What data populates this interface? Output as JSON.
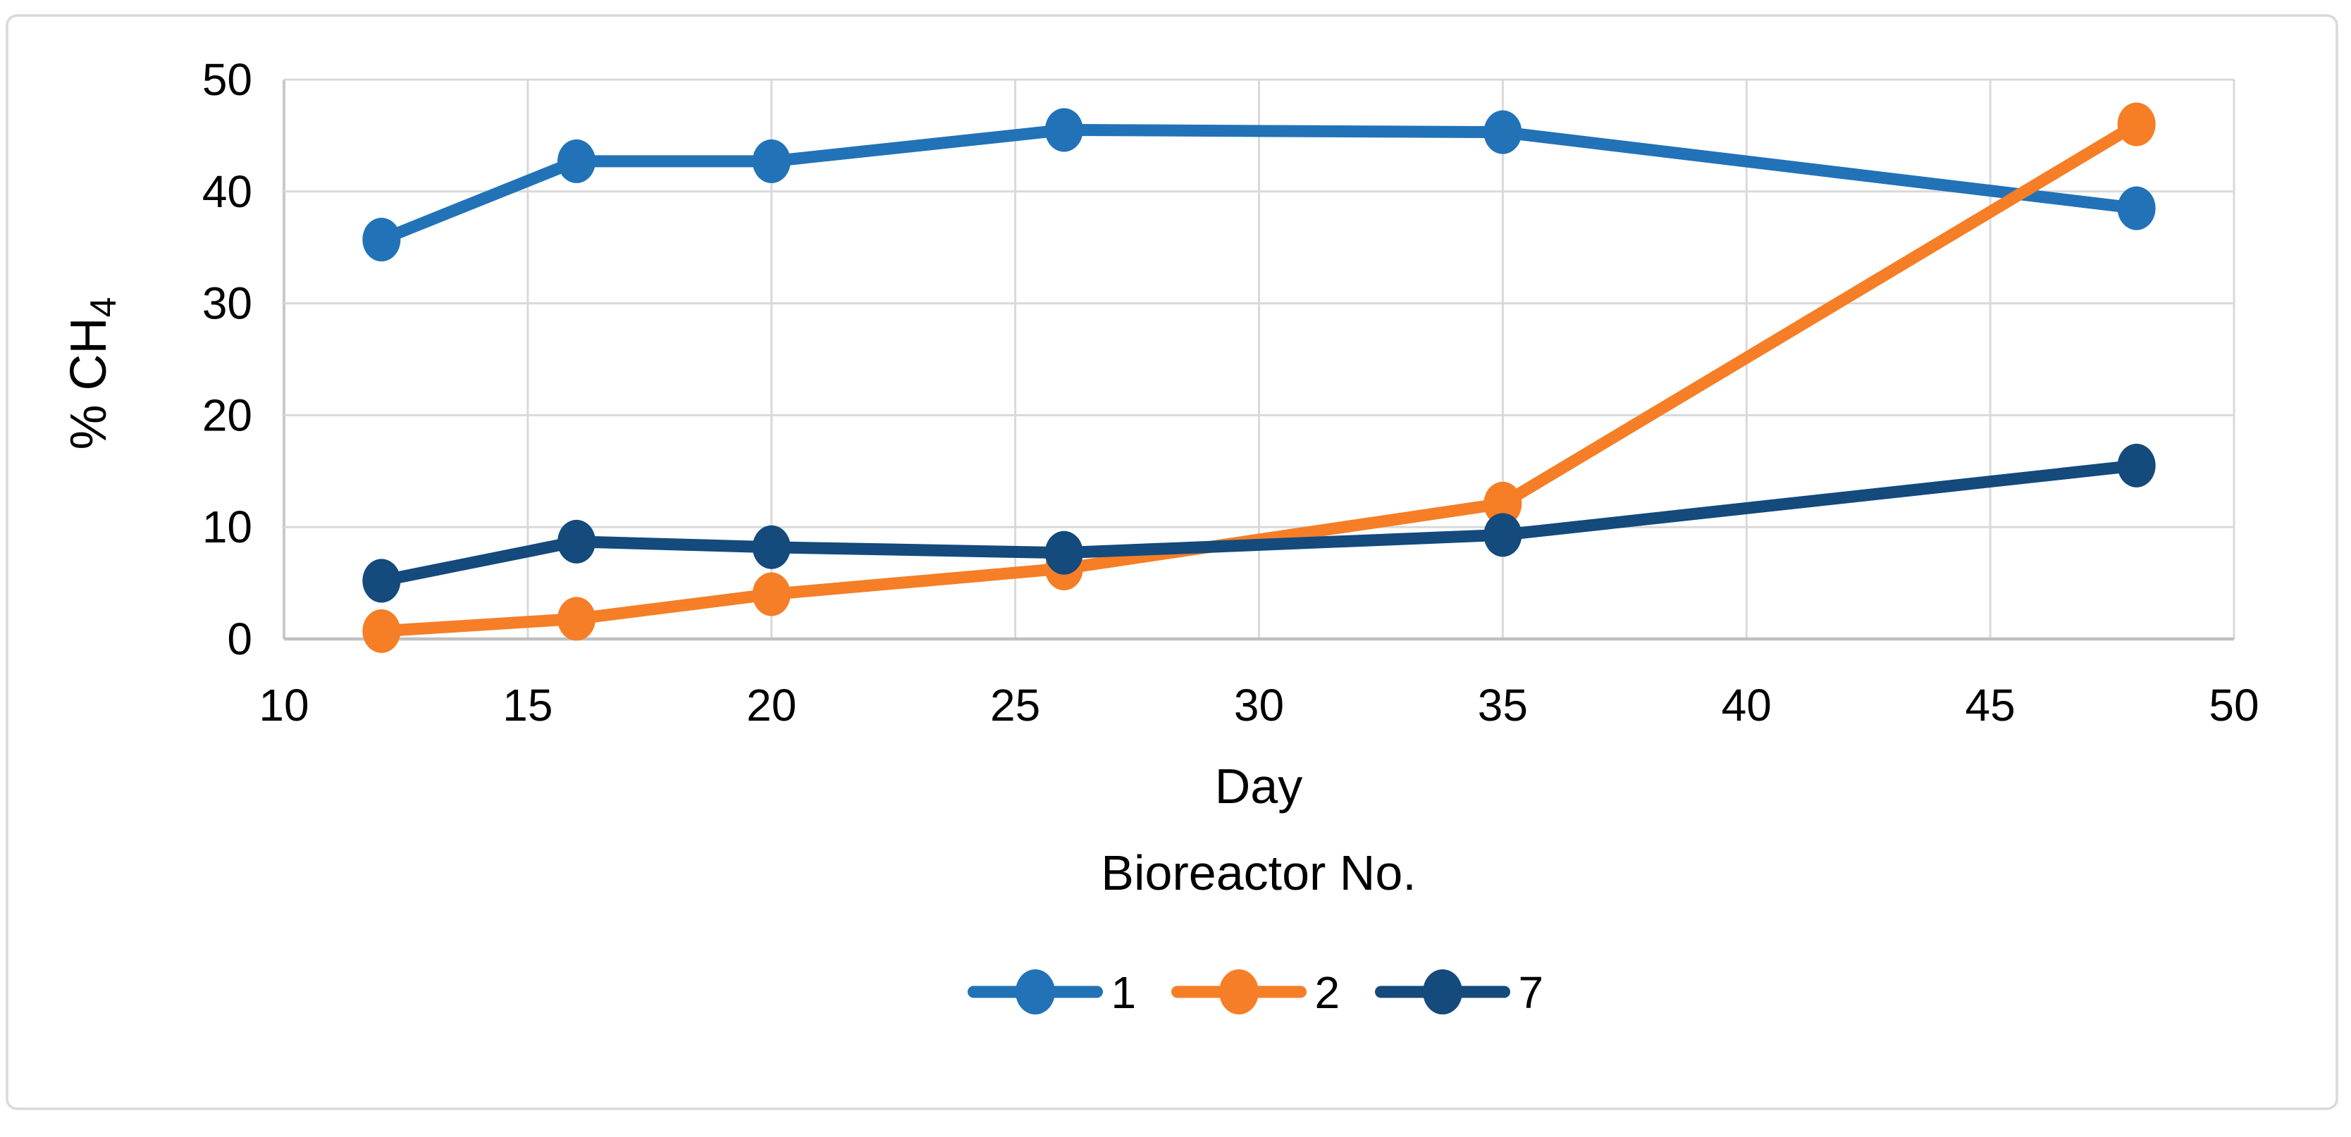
{
  "figure": {
    "background": "#ffffff",
    "border_color": "#d9d9d9",
    "gridline_color": "#d9d9d9",
    "axis_line_color": "#bfbfbf",
    "text_color": "#000000"
  },
  "chart_data": {
    "type": "line",
    "x": [
      12,
      16,
      20,
      26,
      35,
      48
    ],
    "series": [
      {
        "name": "1",
        "color": "#2272b8",
        "values": [
          35.7,
          42.7,
          42.7,
          45.5,
          45.3,
          38.5
        ]
      },
      {
        "name": "2",
        "color": "#f57e27",
        "values": [
          0.7,
          1.8,
          4.0,
          6.3,
          12.1,
          46.0
        ]
      },
      {
        "name": "7",
        "color": "#144a7c",
        "values": [
          5.2,
          8.7,
          8.2,
          7.7,
          9.3,
          15.5
        ]
      }
    ],
    "xlabel": "Day",
    "ylabel_main": "% CH",
    "ylabel_sub": "4",
    "legend_title": "Bioreactor  No.",
    "legend_position": "bottom",
    "xlim": [
      10,
      50
    ],
    "ylim": [
      0,
      50
    ],
    "xticks": [
      10,
      15,
      20,
      25,
      30,
      35,
      40,
      45,
      50
    ],
    "yticks": [
      0,
      10,
      20,
      30,
      40,
      50
    ],
    "grid": true
  }
}
